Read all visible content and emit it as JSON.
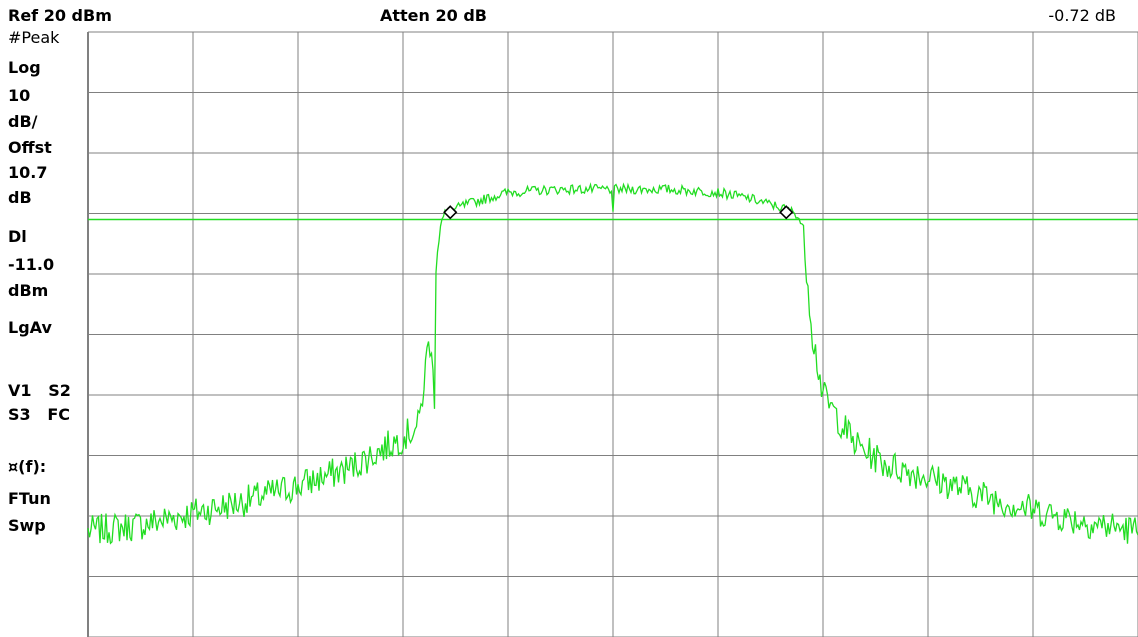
{
  "header": {
    "ref_level": "Ref 20 dBm",
    "attenuation": "Atten 20 dB",
    "marker_delta": "-0.72 dB"
  },
  "side_panel": {
    "labels": [
      "#Peak",
      "Log",
      "10",
      "dB/",
      "Offst",
      "10.7",
      "dB",
      "Dl",
      "-11.0",
      "dBm",
      "LgAv",
      "V1   S2",
      "S3   FC",
      "¤(f):",
      "FTun",
      "Swp"
    ]
  },
  "display_line": {
    "label": "Dl",
    "level_dbm": -11.0
  },
  "colors": {
    "trace": "#22dd22",
    "display_line": "#22dd22",
    "grid": "#808080",
    "marker": "#000000"
  },
  "chart_data": {
    "type": "line",
    "title": "",
    "xlabel": "",
    "ylabel": "",
    "scale": "log",
    "divisions_x": 10,
    "divisions_y": 10,
    "ref_level_dbm": 20,
    "db_per_div": 10,
    "ylim": [
      -80,
      20
    ],
    "xlim": [
      0,
      10
    ],
    "grid": true,
    "series": [
      {
        "x": [
          0.0,
          0.5,
          1.0,
          1.5,
          2.0,
          2.5,
          3.0,
          3.3,
          3.15,
          3.2,
          3.25,
          3.3,
          3.35,
          3.4,
          3.6,
          3.8,
          4.0,
          4.5,
          5.0,
          5.5,
          6.0,
          6.3,
          6.6,
          6.75,
          6.8,
          6.85,
          6.9,
          7.0,
          7.3,
          7.6,
          8.0,
          8.5,
          9.0,
          9.5,
          10.0
        ],
        "y": [
          -62.5,
          -61.5,
          -59.5,
          -57.5,
          -55.0,
          -52.0,
          -47.0,
          -40.0,
          -45.0,
          -38.0,
          -30.0,
          -20.0,
          -12.0,
          -10.0,
          -8.5,
          -7.5,
          -6.5,
          -6.0,
          -6.0,
          -6.0,
          -6.5,
          -7.5,
          -9.0,
          -10.0,
          -12.0,
          -20.0,
          -30.0,
          -40.0,
          -48.0,
          -51.5,
          -53.5,
          -56.5,
          -59.0,
          -61.0,
          -62.5
        ]
      }
    ],
    "markers": [
      {
        "type": "diamond",
        "x": 3.45,
        "y": -9.8
      },
      {
        "type": "diamond",
        "x": 6.65,
        "y": -9.8
      }
    ]
  }
}
